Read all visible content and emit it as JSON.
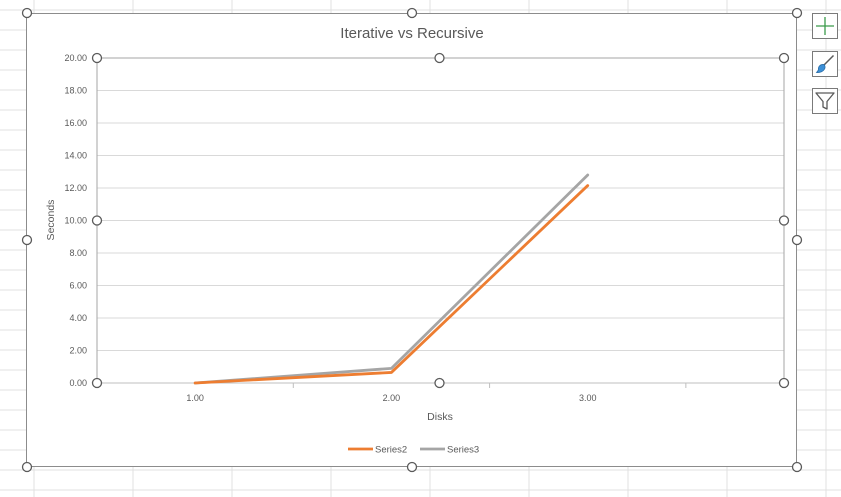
{
  "colors": {
    "series2": "#ED7D31",
    "series3": "#A5A5A5",
    "gridline": "#D9D9D9",
    "axis_text": "#595959",
    "sheet_grid": "#E1E1E1"
  },
  "side_buttons": [
    {
      "icon": "plus-icon"
    },
    {
      "icon": "brush-icon"
    },
    {
      "icon": "filter-icon"
    }
  ],
  "chart_data": {
    "type": "line",
    "title": "Iterative vs Recursive",
    "xlabel": "Disks",
    "ylabel": "Seconds",
    "x": [
      1.0,
      2.0,
      3.0
    ],
    "x_tick_labels": [
      "1.00",
      "2.00",
      "3.00"
    ],
    "y_tick_labels": [
      "0.00",
      "2.00",
      "4.00",
      "6.00",
      "8.00",
      "10.00",
      "12.00",
      "14.00",
      "16.00",
      "18.00",
      "20.00"
    ],
    "ylim": [
      0,
      20
    ],
    "grid": true,
    "legend_position": "bottom",
    "series": [
      {
        "name": "Series2",
        "values": [
          0.0,
          0.65,
          12.15
        ],
        "color": "#ED7D31"
      },
      {
        "name": "Series3",
        "values": [
          0.0,
          0.9,
          12.8
        ],
        "color": "#A5A5A5"
      }
    ]
  }
}
